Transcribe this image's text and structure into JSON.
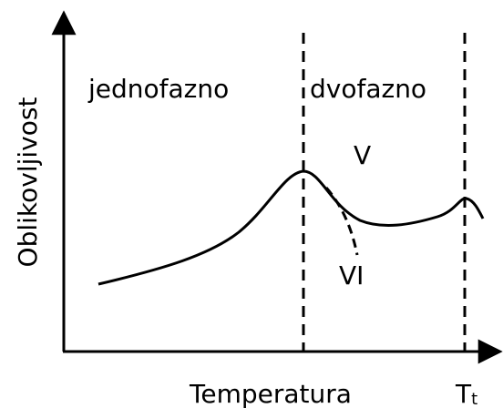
{
  "labels": {
    "y_axis": "Oblikovljivost",
    "x_axis": "Temperatura",
    "regions": [
      "jednofazno",
      "dvofazno"
    ],
    "curves": [
      "V",
      "VI"
    ],
    "marker": {
      "main": "T",
      "sub": "t"
    }
  }
}
